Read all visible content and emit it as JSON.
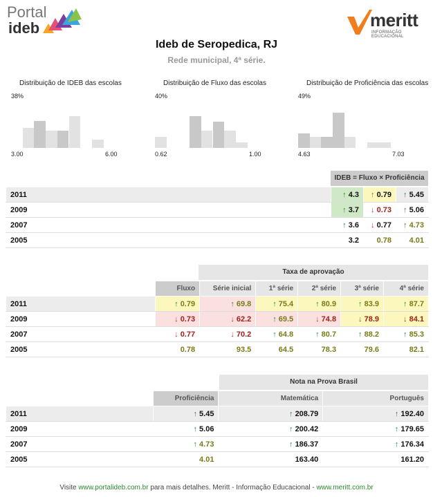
{
  "logo": {
    "portal": "Portal",
    "ideb": "ideb",
    "meritt": "meritt",
    "meritt_sub": "INFORMAÇÃO EDUCACIONAL"
  },
  "title": "Ideb de Seropedica, RJ",
  "subtitle": "Rede municipal, 4ª série.",
  "histograms": [
    {
      "title": "Distribuição de IDEB das escolas",
      "max_label": "38%",
      "min": "3.00",
      "max": "6.00",
      "bars": [
        0,
        0.45,
        0.6,
        0.38,
        0.38,
        0.7,
        0,
        0.18
      ],
      "highlight": [
        0,
        0,
        1,
        0,
        1,
        0,
        0,
        0
      ]
    },
    {
      "title": "Distribuição de Fluxo das escolas",
      "max_label": "40%",
      "min": "0.62",
      "max": "1.00",
      "bars": [
        0.25,
        0,
        0,
        0.7,
        0.38,
        0.58,
        0.38,
        0.13
      ],
      "highlight": [
        0,
        0,
        0,
        1,
        0,
        1,
        0,
        0
      ]
    },
    {
      "title": "Distribuição de Proficiência das escolas",
      "max_label": "49%",
      "min": "4.63",
      "max": "7.03",
      "bars": [
        0.33,
        0.24,
        0.24,
        0.78,
        0.24,
        0,
        0.13,
        0.13
      ],
      "highlight": [
        1,
        0,
        1,
        1,
        0,
        0,
        0,
        0
      ]
    }
  ],
  "table1": {
    "header": "IDEB = Fluxo × Proficiência",
    "rows": [
      {
        "year": "2011",
        "ideb": "4.3",
        "fluxo": "0.79",
        "prof": "5.45"
      },
      {
        "year": "2009",
        "ideb": "3.7",
        "fluxo": "0.73",
        "prof": "5.06"
      },
      {
        "year": "2007",
        "ideb": "3.6",
        "fluxo": "0.77",
        "prof": "4.73"
      },
      {
        "year": "2005",
        "ideb": "3.2",
        "fluxo": "0.78",
        "prof": "4.01"
      }
    ]
  },
  "table2": {
    "group_header": "Taxa de aprovação",
    "headers": [
      "Fluxo",
      "Série inicial",
      "1ª série",
      "2ª série",
      "3ª série",
      "4ª série"
    ],
    "rows": [
      {
        "year": "2011",
        "vals": [
          "0.79",
          "69.8",
          "75.4",
          "80.9",
          "83.9",
          "87.7"
        ]
      },
      {
        "year": "2009",
        "vals": [
          "0.73",
          "62.2",
          "69.5",
          "74.8",
          "78.9",
          "84.1"
        ]
      },
      {
        "year": "2007",
        "vals": [
          "0.77",
          "70.2",
          "64.8",
          "80.7",
          "88.2",
          "85.3"
        ]
      },
      {
        "year": "2005",
        "vals": [
          "0.78",
          "93.5",
          "64.5",
          "78.3",
          "79.6",
          "82.1"
        ]
      }
    ]
  },
  "table3": {
    "group_header": "Nota na Prova Brasil",
    "headers": [
      "Proficiência",
      "Matemática",
      "Português"
    ],
    "rows": [
      {
        "year": "2011",
        "vals": [
          "5.45",
          "208.79",
          "192.40"
        ]
      },
      {
        "year": "2009",
        "vals": [
          "5.06",
          "200.42",
          "179.65"
        ]
      },
      {
        "year": "2007",
        "vals": [
          "4.73",
          "186.37",
          "176.34"
        ]
      },
      {
        "year": "2005",
        "vals": [
          "4.01",
          "163.40",
          "161.20"
        ]
      }
    ]
  },
  "footer": {
    "pre": "Visite ",
    "site1": "www.portalideb.com.br",
    "mid": " para mais detalhes. Meritt - Informação Educacional - ",
    "site2": "www.meritt.com.br"
  },
  "colors": {
    "green_up": "#2a8a2a",
    "red_down": "#c0302a",
    "olive": "#7a7a18"
  }
}
